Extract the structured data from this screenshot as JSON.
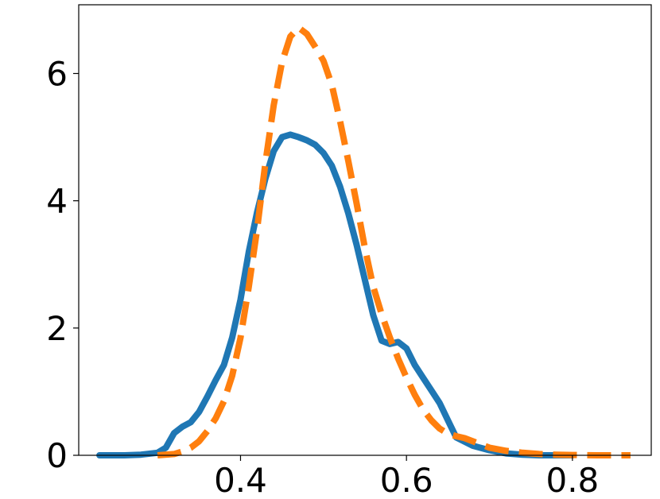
{
  "chart_data": {
    "type": "line",
    "title": "",
    "xlabel": "",
    "ylabel": "",
    "xlim": [
      0.205,
      0.895
    ],
    "ylim": [
      0,
      7.08
    ],
    "xticks": [
      0.4,
      0.6,
      0.8
    ],
    "xtick_labels": [
      "0.4",
      "0.6",
      "0.8"
    ],
    "yticks": [
      0,
      2,
      4,
      6
    ],
    "ytick_labels": [
      "0",
      "2",
      "4",
      "6"
    ],
    "grid": false,
    "legend": "none",
    "series": [
      {
        "color": "#1f77b4",
        "dash": "solid",
        "x": [
          0.23,
          0.26,
          0.28,
          0.3,
          0.31,
          0.32,
          0.33,
          0.34,
          0.35,
          0.36,
          0.37,
          0.38,
          0.39,
          0.4,
          0.41,
          0.42,
          0.43,
          0.44,
          0.45,
          0.46,
          0.47,
          0.48,
          0.49,
          0.5,
          0.51,
          0.52,
          0.53,
          0.54,
          0.55,
          0.56,
          0.57,
          0.58,
          0.59,
          0.6,
          0.61,
          0.62,
          0.63,
          0.64,
          0.65,
          0.66,
          0.68,
          0.7,
          0.72,
          0.74,
          0.76,
          0.78,
          0.8
        ],
        "y": [
          0,
          0,
          0.01,
          0.04,
          0.12,
          0.35,
          0.45,
          0.52,
          0.68,
          0.92,
          1.18,
          1.42,
          1.85,
          2.45,
          3.2,
          3.82,
          4.35,
          4.78,
          5.0,
          5.04,
          5.0,
          4.95,
          4.88,
          4.75,
          4.55,
          4.22,
          3.8,
          3.3,
          2.75,
          2.2,
          1.8,
          1.75,
          1.78,
          1.68,
          1.42,
          1.22,
          1.02,
          0.82,
          0.55,
          0.28,
          0.15,
          0.08,
          0.03,
          0.01,
          0,
          0,
          0
        ]
      },
      {
        "color": "#ff7f0e",
        "dash": "dashed",
        "x": [
          0.3,
          0.32,
          0.33,
          0.34,
          0.35,
          0.36,
          0.37,
          0.38,
          0.39,
          0.4,
          0.41,
          0.42,
          0.43,
          0.44,
          0.45,
          0.46,
          0.47,
          0.48,
          0.49,
          0.5,
          0.51,
          0.52,
          0.53,
          0.54,
          0.55,
          0.56,
          0.57,
          0.58,
          0.59,
          0.6,
          0.61,
          0.62,
          0.63,
          0.64,
          0.65,
          0.66,
          0.67,
          0.68,
          0.69,
          0.7,
          0.72,
          0.74,
          0.76,
          0.78,
          0.8,
          0.83,
          0.87
        ],
        "y": [
          0,
          0.02,
          0.06,
          0.12,
          0.22,
          0.38,
          0.58,
          0.85,
          1.25,
          1.85,
          2.65,
          3.55,
          4.6,
          5.5,
          6.18,
          6.58,
          6.72,
          6.62,
          6.42,
          6.2,
          5.82,
          5.25,
          4.62,
          3.95,
          3.25,
          2.65,
          2.22,
          1.85,
          1.52,
          1.22,
          0.95,
          0.72,
          0.55,
          0.42,
          0.34,
          0.3,
          0.27,
          0.22,
          0.17,
          0.12,
          0.07,
          0.04,
          0.02,
          0.01,
          0.005,
          0,
          0
        ]
      }
    ]
  }
}
